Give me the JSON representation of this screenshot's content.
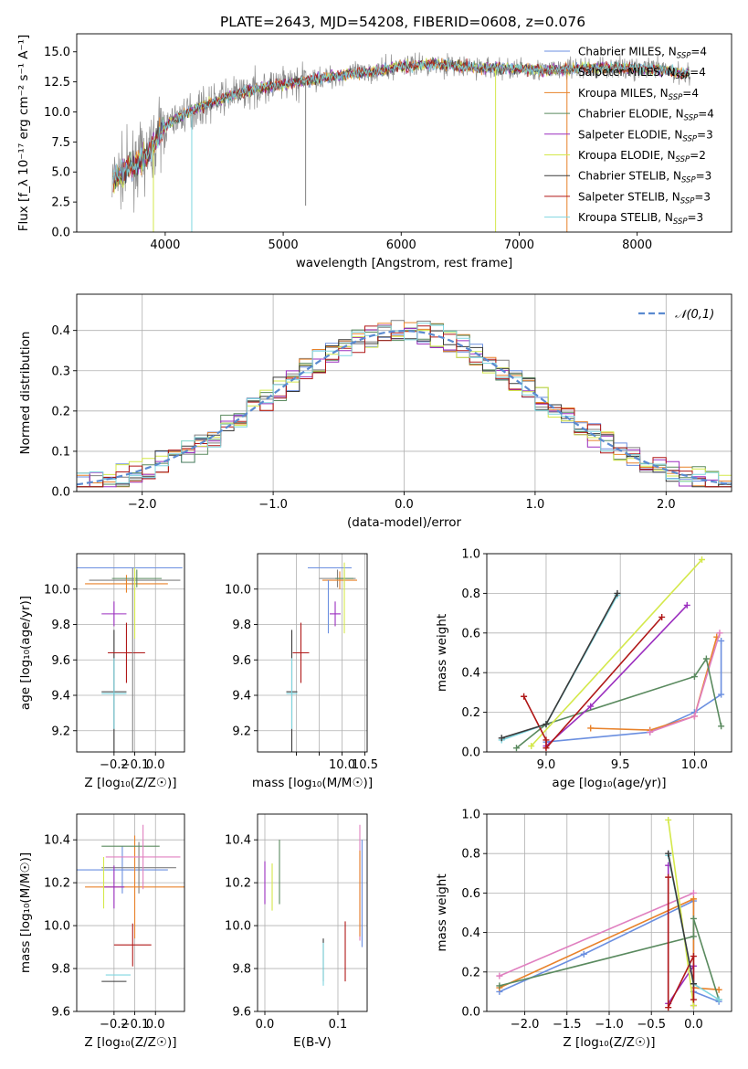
{
  "figure_title": "PLATE=2643, MJD=54208, FIBERID=0608, z=0.076",
  "colors": {
    "Chabrier MILES": "#6b8fe0",
    "Salpeter MILES": "#808080",
    "Kroupa MILES": "#e8822a",
    "Chabrier ELODIE": "#5a8a5f",
    "Salpeter ELODIE": "#9b2fbf",
    "Kroupa ELODIE": "#d4e84a",
    "Chabrier STELIB": "#3a3a3a",
    "Salpeter STELIB": "#b01818",
    "Kroupa STELIB": "#7fd6e0",
    "extra": "#e080c0"
  },
  "chart_data": [
    {
      "id": "spectrum",
      "type": "line",
      "title": "PLATE=2643, MJD=54208, FIBERID=0608, z=0.076",
      "xlabel": "wavelength [Angstrom, rest frame]",
      "ylabel": "Flux [f_λ 10⁻¹⁷ erg cm⁻² s⁻¹ A⁻¹]",
      "xlim": [
        3250,
        8800
      ],
      "ylim": [
        0,
        16.5
      ],
      "xticks": [
        4000,
        5000,
        6000,
        7000,
        8000
      ],
      "yticks": [
        0.0,
        2.5,
        5.0,
        7.5,
        10.0,
        12.5,
        15.0
      ],
      "grid": false,
      "legend_position": "right",
      "legend": [
        {
          "label": "Chabrier MILES, N",
          "sub": "SSP",
          "suffix": "=4",
          "color": "Chabrier MILES"
        },
        {
          "label": "Salpeter MILES, N",
          "sub": "SSP",
          "suffix": "=4",
          "color": "Salpeter MILES"
        },
        {
          "label": "Kroupa MILES, N",
          "sub": "SSP",
          "suffix": "=4",
          "color": "Kroupa MILES"
        },
        {
          "label": "Chabrier ELODIE, N",
          "sub": "SSP",
          "suffix": "=4",
          "color": "Chabrier ELODIE"
        },
        {
          "label": "Salpeter ELODIE, N",
          "sub": "SSP",
          "suffix": "=3",
          "color": "Salpeter ELODIE"
        },
        {
          "label": "Kroupa ELODIE, N",
          "sub": "SSP",
          "suffix": "=2",
          "color": "Kroupa ELODIE"
        },
        {
          "label": "Chabrier STELIB, N",
          "sub": "SSP",
          "suffix": "=3",
          "color": "Chabrier STELIB"
        },
        {
          "label": "Salpeter STELIB, N",
          "sub": "SSP",
          "suffix": "=3",
          "color": "Salpeter STELIB"
        },
        {
          "label": "Kroupa STELIB, N",
          "sub": "SSP",
          "suffix": "=3",
          "color": "Kroupa STELIB"
        }
      ],
      "continuum": [
        [
          3550,
          4.2
        ],
        [
          3650,
          5.0
        ],
        [
          3750,
          5.6
        ],
        [
          3850,
          6.4
        ],
        [
          3950,
          8.2
        ],
        [
          4050,
          9.2
        ],
        [
          4200,
          10.0
        ],
        [
          4400,
          10.8
        ],
        [
          4600,
          11.5
        ],
        [
          4800,
          12.0
        ],
        [
          5000,
          12.3
        ],
        [
          5200,
          12.6
        ],
        [
          5500,
          13.1
        ],
        [
          5800,
          13.4
        ],
        [
          6000,
          13.8
        ],
        [
          6300,
          14.0
        ],
        [
          6600,
          13.7
        ],
        [
          6900,
          13.6
        ],
        [
          7200,
          13.5
        ],
        [
          7500,
          13.6
        ],
        [
          7800,
          13.7
        ],
        [
          8100,
          13.6
        ],
        [
          8450,
          13.2
        ]
      ],
      "drops": [
        {
          "x": 3900,
          "y": 0,
          "color": "Kroupa ELODIE"
        },
        {
          "x": 4225,
          "y": 0,
          "color": "Kroupa STELIB"
        },
        {
          "x": 5190,
          "y": 2.2,
          "color": "Salpeter MILES"
        },
        {
          "x": 6800,
          "y": 0,
          "color": "Kroupa ELODIE"
        },
        {
          "x": 7405,
          "y": 0,
          "color": "Kroupa MILES"
        }
      ]
    },
    {
      "id": "residuals",
      "type": "step-histogram",
      "xlabel": "(data-model)/error",
      "ylabel": "Normed distribution",
      "xlim": [
        -2.5,
        2.5
      ],
      "ylim": [
        0,
        0.49
      ],
      "xticks": [
        -2,
        -1,
        0,
        1,
        2
      ],
      "yticks": [
        0.0,
        0.1,
        0.2,
        0.3,
        0.4
      ],
      "grid": true,
      "legend_position": "upper right",
      "legend": [
        {
          "label": "𝒩(0,1)",
          "color": "#5a8ad0"
        }
      ],
      "bin_width": 0.1,
      "gaussian": {
        "mu": 0,
        "sigma": 1
      }
    },
    {
      "id": "age-vs-Z",
      "type": "errorbar",
      "xlabel": "Z [log₁₀(Z/Z☉)]",
      "ylabel": "age  [log₁₀(age/yr)]",
      "xlim": [
        -0.38,
        0.14
      ],
      "ylim": [
        9.08,
        10.2
      ],
      "xticks": [
        -0.2,
        -0.1,
        0.0
      ],
      "yticks": [
        9.2,
        9.4,
        9.6,
        9.8,
        10.0
      ],
      "grid": true,
      "points": [
        {
          "x": -0.13,
          "y": 10.12,
          "xerr": 0.26,
          "yerr": 0.0,
          "color": "Chabrier MILES"
        },
        {
          "x": -0.1,
          "y": 10.05,
          "xerr": 0.22,
          "yerr": 0.05,
          "color": "Salpeter MILES"
        },
        {
          "x": -0.14,
          "y": 10.03,
          "xerr": 0.2,
          "yerr": 0.05,
          "color": "Kroupa MILES"
        },
        {
          "x": -0.09,
          "y": 10.06,
          "xerr": 0.12,
          "yerr": 0.05,
          "color": "Chabrier ELODIE"
        },
        {
          "x": -0.2,
          "y": 9.86,
          "xerr": 0.06,
          "yerr": 0.07,
          "color": "Salpeter ELODIE"
        },
        {
          "x": -0.1,
          "y": 9.92,
          "xerr": 0.0,
          "yerr": 0.2,
          "color": "Kroupa ELODIE"
        },
        {
          "x": -0.2,
          "y": 9.42,
          "xerr": 0.06,
          "yerr": 0.35,
          "color": "Chabrier STELIB"
        },
        {
          "x": -0.14,
          "y": 9.64,
          "xerr": 0.09,
          "yerr": 0.17,
          "color": "Salpeter STELIB"
        },
        {
          "x": -0.2,
          "y": 9.41,
          "xerr": 0.06,
          "yerr": 0.2,
          "color": "Kroupa STELIB"
        },
        {
          "x": -0.11,
          "y": 9.6,
          "xerr": 0.0,
          "yerr": 0.52,
          "color": "Salpeter MILES"
        }
      ]
    },
    {
      "id": "age-vs-mass",
      "type": "errorbar",
      "xlabel": "mass [log₁₀(M/M☉)]",
      "ylabel": "",
      "xlim": [
        8.15,
        10.55
      ],
      "ylim": [
        9.08,
        10.2
      ],
      "xticks": [
        9.0,
        9.5,
        10.0,
        10.5
      ],
      "xticklabels": [
        "",
        "",
        "10.0",
        "10.5"
      ],
      "yticks": [
        9.2,
        9.4,
        9.6,
        9.8,
        10.0
      ],
      "grid": true,
      "points": [
        {
          "x": 9.73,
          "y": 10.12,
          "xerr": 0.48,
          "yerr": 0.0,
          "color": "Chabrier MILES"
        },
        {
          "x": 9.9,
          "y": 10.06,
          "xerr": 0.4,
          "yerr": 0.05,
          "color": "Salpeter MILES"
        },
        {
          "x": 9.95,
          "y": 10.05,
          "xerr": 0.38,
          "yerr": 0.05,
          "color": "Kroupa MILES"
        },
        {
          "x": 10.05,
          "y": 10.06,
          "xerr": 0.2,
          "yerr": 0.05,
          "color": "Chabrier ELODIE"
        },
        {
          "x": 9.85,
          "y": 9.86,
          "xerr": 0.12,
          "yerr": 0.07,
          "color": "Salpeter ELODIE"
        },
        {
          "x": 10.05,
          "y": 9.95,
          "xerr": 0.0,
          "yerr": 0.2,
          "color": "Kroupa ELODIE"
        },
        {
          "x": 8.9,
          "y": 9.42,
          "xerr": 0.12,
          "yerr": 0.35,
          "color": "Chabrier STELIB"
        },
        {
          "x": 9.1,
          "y": 9.64,
          "xerr": 0.18,
          "yerr": 0.17,
          "color": "Salpeter STELIB"
        },
        {
          "x": 8.9,
          "y": 9.41,
          "xerr": 0.12,
          "yerr": 0.2,
          "color": "Kroupa STELIB"
        },
        {
          "x": 9.7,
          "y": 9.9,
          "xerr": 0.0,
          "yerr": 0.15,
          "color": "Chabrier MILES"
        }
      ]
    },
    {
      "id": "weight-vs-age",
      "type": "line",
      "xlabel": "age  [log₁₀(age/yr)]",
      "ylabel": "mass weight",
      "xlim": [
        8.6,
        10.25
      ],
      "ylim": [
        0,
        1.0
      ],
      "xticks": [
        9.0,
        9.5,
        10.0
      ],
      "yticks": [
        0.0,
        0.2,
        0.4,
        0.6,
        0.8,
        1.0
      ],
      "grid": true,
      "series": [
        {
          "color": "Chabrier MILES",
          "x": [
            9.0,
            9.7,
            10.0,
            10.18,
            10.18
          ],
          "y": [
            0.05,
            0.1,
            0.2,
            0.29,
            0.56
          ]
        },
        {
          "color": "Kroupa MILES",
          "x": [
            9.3,
            9.7,
            10.0,
            10.15
          ],
          "y": [
            0.12,
            0.11,
            0.18,
            0.58
          ]
        },
        {
          "color": "extra",
          "x": [
            9.7,
            10.0,
            10.17
          ],
          "y": [
            0.1,
            0.18,
            0.6
          ]
        },
        {
          "color": "Chabrier ELODIE",
          "x": [
            8.8,
            9.0,
            10.0,
            10.08,
            10.18
          ],
          "y": [
            0.02,
            0.14,
            0.38,
            0.47,
            0.13
          ]
        },
        {
          "color": "Salpeter ELODIE",
          "x": [
            9.0,
            9.3,
            9.95
          ],
          "y": [
            0.03,
            0.23,
            0.74
          ]
        },
        {
          "color": "Kroupa ELODIE",
          "x": [
            8.9,
            10.05
          ],
          "y": [
            0.03,
            0.97
          ]
        },
        {
          "color": "Salpeter STELIB",
          "x": [
            8.85,
            9.0,
            9.0,
            9.78
          ],
          "y": [
            0.28,
            0.06,
            0.02,
            0.68
          ]
        },
        {
          "color": "Kroupa STELIB",
          "x": [
            8.7,
            9.0,
            9.48
          ],
          "y": [
            0.06,
            0.14,
            0.79
          ]
        },
        {
          "color": "Chabrier STELIB",
          "x": [
            8.7,
            9.0,
            9.48
          ],
          "y": [
            0.07,
            0.14,
            0.8
          ]
        }
      ]
    },
    {
      "id": "mass-vs-Z",
      "type": "errorbar",
      "xlabel": "Z [log₁₀(Z/Z☉)]",
      "ylabel": "mass [log₁₀(M/M☉)]",
      "xlim": [
        -0.38,
        0.14
      ],
      "ylim": [
        9.6,
        10.52
      ],
      "xticks": [
        -0.2,
        -0.1,
        0.0
      ],
      "yticks": [
        9.6,
        9.8,
        10.0,
        10.2,
        10.4
      ],
      "grid": true,
      "points": [
        {
          "x": -0.16,
          "y": 10.26,
          "xerr": 0.22,
          "yerr": 0.11,
          "color": "Chabrier MILES"
        },
        {
          "x": -0.08,
          "y": 10.27,
          "xerr": 0.18,
          "yerr": 0.12,
          "color": "Salpeter MILES"
        },
        {
          "x": -0.1,
          "y": 10.18,
          "xerr": 0.24,
          "yerr": 0.24,
          "color": "Kroupa MILES"
        },
        {
          "x": -0.12,
          "y": 10.37,
          "xerr": 0.14,
          "yerr": 0.0,
          "color": "Chabrier ELODIE"
        },
        {
          "x": -0.2,
          "y": 10.18,
          "xerr": 0.05,
          "yerr": 0.1,
          "color": "Salpeter ELODIE"
        },
        {
          "x": -0.25,
          "y": 10.2,
          "xerr": 0.0,
          "yerr": 0.12,
          "color": "Kroupa ELODIE"
        },
        {
          "x": -0.2,
          "y": 9.74,
          "xerr": 0.06,
          "yerr": 0.0,
          "color": "Chabrier STELIB"
        },
        {
          "x": -0.11,
          "y": 9.91,
          "xerr": 0.09,
          "yerr": 0.1,
          "color": "Salpeter STELIB"
        },
        {
          "x": -0.18,
          "y": 9.77,
          "xerr": 0.06,
          "yerr": 0.0,
          "color": "Kroupa STELIB"
        },
        {
          "x": -0.06,
          "y": 10.32,
          "xerr": 0.18,
          "yerr": 0.15,
          "color": "extra"
        }
      ]
    },
    {
      "id": "mass-vs-EBV",
      "type": "errorbar",
      "xlabel": "E(B-V)",
      "ylabel": "",
      "xlim": [
        -0.01,
        0.14
      ],
      "ylim": [
        9.6,
        10.52
      ],
      "xticks": [
        0.0,
        0.1
      ],
      "yticks": [
        9.6,
        9.8,
        10.0,
        10.2,
        10.4
      ],
      "grid": true,
      "points": [
        {
          "x": 0.0,
          "y": 10.2,
          "xerr": 0,
          "yerr": 0.1,
          "color": "Salpeter ELODIE"
        },
        {
          "x": 0.01,
          "y": 10.18,
          "xerr": 0,
          "yerr": 0.11,
          "color": "Kroupa ELODIE"
        },
        {
          "x": 0.02,
          "y": 10.25,
          "xerr": 0,
          "yerr": 0.15,
          "color": "Chabrier ELODIE"
        },
        {
          "x": 0.08,
          "y": 9.84,
          "xerr": 0,
          "yerr": 0.1,
          "color": "Chabrier STELIB"
        },
        {
          "x": 0.08,
          "y": 9.82,
          "xerr": 0,
          "yerr": 0.1,
          "color": "Kroupa STELIB"
        },
        {
          "x": 0.11,
          "y": 9.88,
          "xerr": 0,
          "yerr": 0.14,
          "color": "Salpeter STELIB"
        },
        {
          "x": 0.13,
          "y": 10.2,
          "xerr": 0,
          "yerr": 0.27,
          "color": "extra"
        },
        {
          "x": 0.13,
          "y": 10.15,
          "xerr": 0,
          "yerr": 0.2,
          "color": "Kroupa MILES"
        },
        {
          "x": 0.133,
          "y": 10.15,
          "xerr": 0,
          "yerr": 0.25,
          "color": "Chabrier MILES"
        }
      ]
    },
    {
      "id": "weight-vs-Z",
      "type": "line",
      "xlabel": "Z [log₁₀(Z/Z☉)]",
      "ylabel": "mass weight",
      "xlim": [
        -2.45,
        0.45
      ],
      "ylim": [
        0,
        1.0
      ],
      "xticks": [
        -2.0,
        -1.5,
        -1.0,
        -0.5,
        0.0
      ],
      "yticks": [
        0.0,
        0.2,
        0.4,
        0.6,
        0.8,
        1.0
      ],
      "grid": true,
      "series": [
        {
          "color": "Chabrier MILES",
          "x": [
            -2.3,
            -1.3,
            0.0,
            0.0,
            0.3
          ],
          "y": [
            0.1,
            0.29,
            0.56,
            0.1,
            0.05
          ]
        },
        {
          "color": "Kroupa MILES",
          "x": [
            -2.3,
            0.0,
            0.0,
            0.3
          ],
          "y": [
            0.12,
            0.57,
            0.12,
            0.11
          ]
        },
        {
          "color": "extra",
          "x": [
            -2.3,
            0.0
          ],
          "y": [
            0.18,
            0.6
          ]
        },
        {
          "color": "Chabrier ELODIE",
          "x": [
            -2.3,
            0.0,
            0.0,
            0.3
          ],
          "y": [
            0.13,
            0.38,
            0.47,
            0.06
          ]
        },
        {
          "color": "Salpeter ELODIE",
          "x": [
            -0.3,
            -0.3,
            0.0,
            0.0
          ],
          "y": [
            0.74,
            0.04,
            0.23,
            0.03
          ]
        },
        {
          "color": "Kroupa ELODIE",
          "x": [
            -0.3,
            0.0
          ],
          "y": [
            0.97,
            0.03
          ]
        },
        {
          "color": "Salpeter STELIB",
          "x": [
            -0.3,
            -0.3,
            0.0,
            0.0
          ],
          "y": [
            0.68,
            0.02,
            0.28,
            0.06
          ]
        },
        {
          "color": "Kroupa STELIB",
          "x": [
            -0.3,
            0.0,
            0.3
          ],
          "y": [
            0.79,
            0.14,
            0.06
          ]
        },
        {
          "color": "Chabrier STELIB",
          "x": [
            -0.3,
            0.0
          ],
          "y": [
            0.8,
            0.14
          ]
        }
      ]
    }
  ]
}
